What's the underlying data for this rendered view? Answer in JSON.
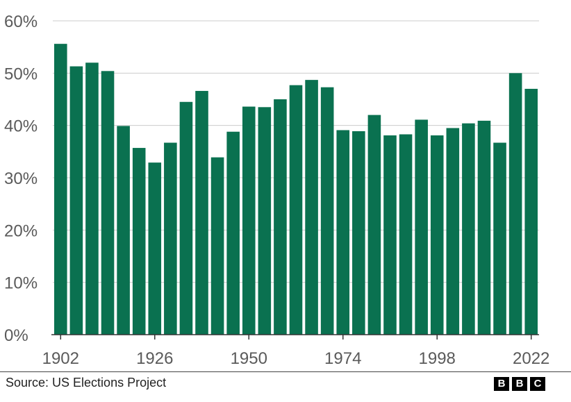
{
  "chart_data": {
    "type": "bar",
    "title": "",
    "xlabel": "",
    "ylabel": "",
    "x": [
      1902,
      1906,
      1910,
      1914,
      1918,
      1922,
      1926,
      1930,
      1934,
      1938,
      1942,
      1946,
      1950,
      1954,
      1958,
      1962,
      1966,
      1970,
      1974,
      1978,
      1982,
      1986,
      1990,
      1994,
      1998,
      2002,
      2006,
      2010,
      2014,
      2018,
      2022
    ],
    "values": [
      55.6,
      51.3,
      52.0,
      50.4,
      39.9,
      35.7,
      32.9,
      36.7,
      44.5,
      46.6,
      33.9,
      38.8,
      43.6,
      43.5,
      45.0,
      47.7,
      48.7,
      47.3,
      39.1,
      38.9,
      42.0,
      38.1,
      38.3,
      41.1,
      38.1,
      39.5,
      40.4,
      40.9,
      36.7,
      50.0,
      47.0
    ],
    "x_tick_labels": [
      "1902",
      "1926",
      "1950",
      "1974",
      "1998",
      "2022"
    ],
    "y_tick_labels": [
      "0%",
      "10%",
      "20%",
      "30%",
      "40%",
      "50%",
      "60%"
    ],
    "ylim": [
      0,
      60
    ],
    "grid": true,
    "bar_color": "#0a7150"
  },
  "footer": {
    "source": "Source: US Elections Project",
    "logo": [
      "B",
      "B",
      "C"
    ]
  }
}
